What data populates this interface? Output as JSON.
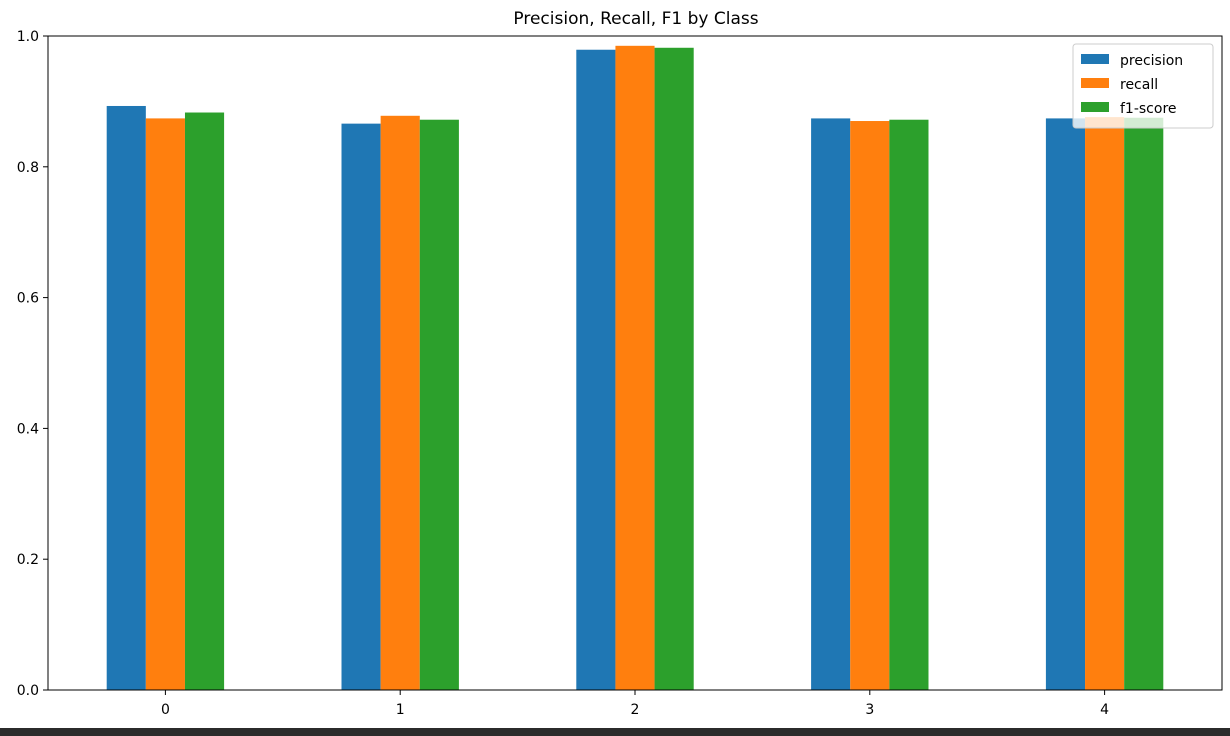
{
  "chart_data": {
    "type": "bar",
    "title": "Precision, Recall, F1 by Class",
    "xlabel": "",
    "ylabel": "",
    "categories": [
      "0",
      "1",
      "2",
      "3",
      "4"
    ],
    "ylim": [
      0,
      1.0
    ],
    "yticks": [
      "0.0",
      "0.2",
      "0.4",
      "0.6",
      "0.8",
      "1.0"
    ],
    "grid": false,
    "legend_position": "top-right",
    "series": [
      {
        "name": "precision",
        "color": "#1f77b4",
        "values": [
          0.893,
          0.866,
          0.979,
          0.874,
          0.874
        ]
      },
      {
        "name": "recall",
        "color": "#ff7f0e",
        "values": [
          0.874,
          0.878,
          0.985,
          0.87,
          0.876
        ]
      },
      {
        "name": "f1-score",
        "color": "#2ca02c",
        "values": [
          0.883,
          0.872,
          0.982,
          0.872,
          0.875
        ]
      }
    ]
  }
}
